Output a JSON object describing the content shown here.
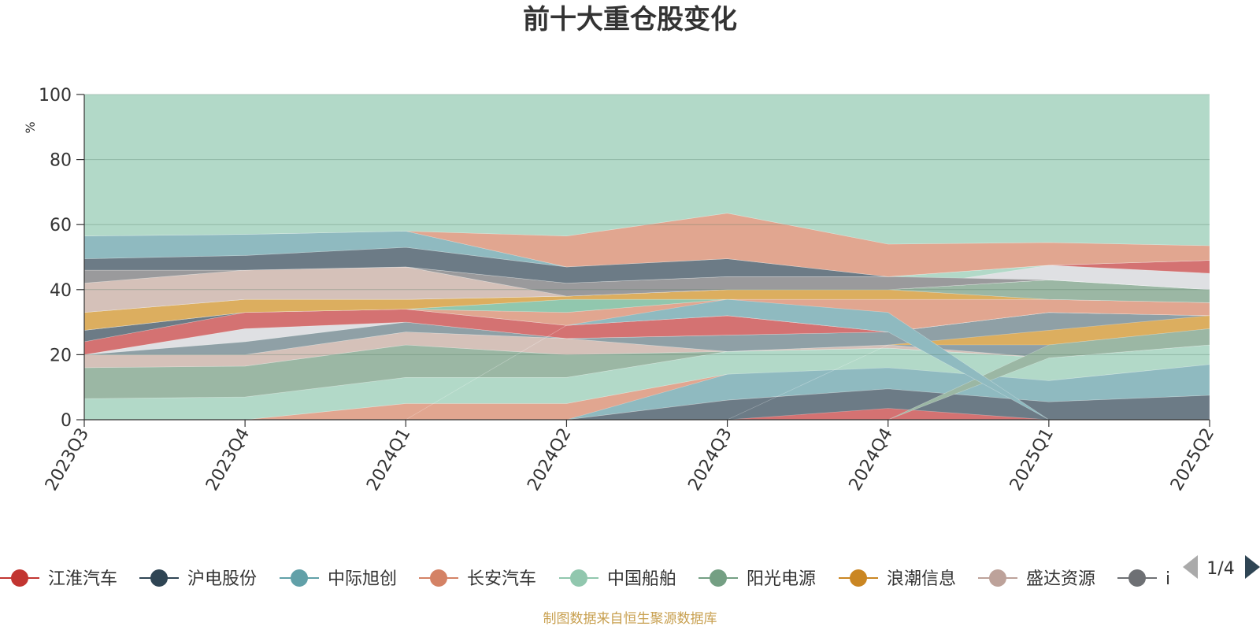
{
  "title": "前十大重仓股变化",
  "source_note": "制图数据来自恒生聚源数据库",
  "legend_page": "1/4",
  "colors": {
    "background_area": "#b2d9c8",
    "source_note": "#c8a050",
    "ylabel": "#e02020",
    "pager_disabled": "#aaaaaa",
    "pager_active": "#2f4554"
  },
  "legend": [
    {
      "name": "江淮汽车",
      "color": "#c23531"
    },
    {
      "name": "沪电股份",
      "color": "#2f4554"
    },
    {
      "name": "中际旭创",
      "color": "#61a0a8"
    },
    {
      "name": "长安汽车",
      "color": "#d48265"
    },
    {
      "name": "中国船舶",
      "color": "#91c7ae"
    },
    {
      "name": "阳光电源",
      "color": "#749f83"
    },
    {
      "name": "浪潮信息",
      "color": "#ca8622"
    },
    {
      "name": "盛达资源",
      "color": "#bda29a"
    },
    {
      "name": "i",
      "color": "#6e7074"
    }
  ],
  "chart_data": {
    "type": "area",
    "title": "前十大重仓股变化",
    "xlabel": "",
    "ylabel": "%",
    "ylim": [
      0,
      100
    ],
    "yticks": [
      0,
      20,
      40,
      60,
      80,
      100
    ],
    "categories": [
      "2023Q3",
      "2023Q4",
      "2024Q1",
      "2024Q2",
      "2024Q3",
      "2024Q4",
      "2025Q1",
      "2025Q2"
    ],
    "grid": true,
    "legend_position": "bottom",
    "bands": [
      {
        "color": "#e1a690",
        "opacity": 1,
        "lower": [
          0,
          0,
          0,
          0,
          0,
          0,
          0,
          0
        ],
        "upper": [
          0,
          0,
          5,
          5,
          14,
          0,
          0,
          0
        ]
      },
      {
        "color": "#b2d9c8",
        "opacity": 1,
        "lower": [
          0,
          0,
          5,
          5,
          14,
          14,
          12,
          17
        ],
        "upper": [
          6.5,
          7,
          13,
          13,
          21,
          22,
          19,
          23
        ]
      },
      {
        "color": "#9bb7a4",
        "opacity": 1,
        "lower": [
          6.5,
          7,
          13,
          13,
          21,
          22,
          19,
          23
        ],
        "upper": [
          16,
          16.5,
          23,
          20,
          21,
          22,
          19,
          28
        ]
      },
      {
        "color": "#d5c1b9",
        "opacity": 1,
        "lower": [
          16,
          16.5,
          23,
          20,
          21,
          22,
          19,
          28
        ],
        "upper": [
          20,
          20,
          27,
          25,
          21,
          23,
          19,
          28
        ]
      },
      {
        "color": "#8fa0a6",
        "opacity": 1,
        "lower": [
          20,
          20,
          27,
          25,
          21,
          23,
          19,
          28
        ],
        "upper": [
          20,
          24,
          30,
          25,
          26,
          27,
          33,
          32
        ]
      },
      {
        "color": "#dfe0e3",
        "opacity": 1,
        "lower": [
          20,
          24,
          30,
          25,
          26,
          27,
          33,
          32
        ],
        "upper": [
          20,
          28,
          30,
          25,
          26,
          27,
          33,
          32
        ]
      },
      {
        "color": "#d47272",
        "opacity": 1,
        "lower": [
          20,
          28,
          30,
          25,
          26,
          27,
          33,
          32
        ],
        "upper": [
          24,
          33,
          34,
          29,
          32,
          27,
          33,
          32
        ]
      },
      {
        "color": "#6c7b86",
        "opacity": 1,
        "lower": [
          24,
          33,
          34,
          29,
          32,
          27,
          33,
          32
        ],
        "upper": [
          27.5,
          33,
          34,
          29,
          32,
          27,
          33,
          32
        ]
      },
      {
        "color": "#e1a690",
        "opacity": 1,
        "lower": [
          27.5,
          33,
          34,
          29,
          32,
          27,
          33,
          32
        ],
        "upper": [
          27.5,
          33,
          34,
          33,
          37,
          37,
          37,
          36
        ]
      },
      {
        "color": "#91c7ae",
        "opacity": 1,
        "lower": [
          27.5,
          33,
          34,
          33,
          37,
          37,
          37,
          36
        ],
        "upper": [
          27.5,
          33,
          34,
          37,
          37,
          37,
          37,
          36
        ]
      },
      {
        "color": "#dcae5f",
        "opacity": 1,
        "lower": [
          27.5,
          33,
          34,
          37,
          37,
          37,
          37,
          36
        ],
        "upper": [
          33,
          37,
          37,
          38,
          40,
          40,
          37,
          36
        ]
      },
      {
        "color": "#9bb7a4",
        "opacity": 1,
        "lower": [
          33,
          37,
          37,
          38,
          40,
          40,
          37,
          36
        ],
        "upper": [
          33,
          37,
          37,
          38,
          40,
          40,
          43,
          40
        ]
      },
      {
        "color": "#dfe0e3",
        "opacity": 1,
        "lower": [
          33,
          37,
          37,
          38,
          40,
          40,
          43,
          40
        ],
        "upper": [
          33,
          37,
          37,
          38,
          40,
          40,
          47.5,
          45
        ]
      },
      {
        "color": "#d5c1b9",
        "opacity": 1,
        "lower": [
          33,
          37,
          37,
          38,
          40,
          40,
          43,
          40
        ],
        "upper": [
          42,
          46,
          47,
          38,
          40,
          40,
          43,
          40
        ]
      },
      {
        "color": "#9a9a9c",
        "opacity": 1,
        "lower": [
          42,
          46,
          47,
          38,
          40,
          40,
          43,
          40
        ],
        "upper": [
          46,
          46,
          47,
          42,
          44,
          44,
          43,
          40
        ]
      },
      {
        "color": "#d47272",
        "opacity": 1,
        "lower": [
          46,
          46,
          47,
          42,
          44,
          44,
          47.5,
          45
        ],
        "upper": [
          46,
          46,
          47,
          42,
          44,
          44,
          47.5,
          49
        ]
      },
      {
        "color": "#6c7b86",
        "opacity": 1,
        "lower": [
          46,
          46,
          47,
          42,
          44,
          44,
          47.5,
          49
        ],
        "upper": [
          49.5,
          50.5,
          53,
          47,
          49.5,
          44,
          47.5,
          49
        ]
      },
      {
        "color": "#8fbac0",
        "opacity": 1,
        "lower": [
          49.5,
          50.5,
          53,
          47,
          49.5,
          44,
          47.5,
          49
        ],
        "upper": [
          56.5,
          57,
          58,
          47,
          49.5,
          44,
          47.5,
          49
        ]
      },
      {
        "color": "#e1a690",
        "opacity": 1,
        "lower": [
          56.5,
          57,
          58,
          47,
          49.5,
          44,
          47.5,
          49
        ],
        "upper": [
          56.5,
          57,
          58,
          56.5,
          63.5,
          54,
          54.5,
          53.5
        ]
      },
      {
        "color": "#b2d9c8",
        "opacity": 1,
        "lower": [
          56.5,
          57,
          58,
          56.5,
          63.5,
          54,
          54.5,
          53.5
        ],
        "upper": [
          100,
          100,
          100,
          100,
          100,
          100,
          100,
          100
        ]
      },
      {
        "color": "#b2d9c8",
        "opacity": 1,
        "lower": [
          0,
          0,
          0,
          0,
          0,
          0,
          0,
          0
        ],
        "upper": [
          0,
          0,
          0,
          0,
          0,
          0,
          0,
          0
        ]
      },
      {
        "color": "#9bb7a4",
        "opacity": 1,
        "lower": [
          0,
          0,
          0,
          0,
          0,
          0,
          0,
          0
        ],
        "upper": [
          0,
          0,
          0,
          0,
          0,
          0,
          0,
          0
        ]
      }
    ],
    "overlays": [
      {
        "color": "#8fbac0",
        "opacity": 1,
        "lower": [
          0,
          0,
          0,
          0,
          6,
          9.5,
          5.5,
          7.5
        ],
        "upper": [
          0,
          0,
          0,
          0,
          14,
          16,
          12,
          17
        ]
      },
      {
        "color": "#6c7b86",
        "opacity": 1,
        "lower": [
          0,
          0,
          0,
          0,
          0,
          0,
          0,
          0
        ],
        "upper": [
          0,
          0,
          0,
          0,
          6,
          9.5,
          5.5,
          7.5
        ]
      },
      {
        "color": "#d47272",
        "opacity": 1,
        "lower": [
          0,
          0,
          0,
          0,
          0,
          0,
          0,
          0
        ],
        "upper": [
          0,
          0,
          0,
          0,
          0,
          3.5,
          0,
          0
        ]
      },
      {
        "color": "#dcae5f",
        "opacity": 1,
        "lower": [
          0,
          0,
          0,
          0,
          0,
          23,
          23,
          28
        ],
        "upper": [
          0,
          0,
          0,
          0,
          0,
          23,
          27.5,
          32
        ]
      },
      {
        "color": "#9bb7a4",
        "opacity": 1,
        "lower": [
          0,
          0,
          0,
          0,
          0,
          0,
          19,
          23
        ],
        "upper": [
          0,
          0,
          0,
          0,
          0,
          0,
          23,
          28
        ]
      },
      {
        "color": "#8fbac0",
        "opacity": 1,
        "lower": [
          0,
          0,
          0,
          29,
          32,
          27,
          0,
          0
        ],
        "upper": [
          0,
          0,
          0,
          29,
          37,
          33,
          0,
          0
        ]
      },
      {
        "color": "#e1a690",
        "opacity": 1,
        "lower": [
          0,
          0,
          0,
          0,
          0,
          0,
          0,
          0
        ],
        "upper": [
          0,
          0,
          0,
          0,
          0,
          0,
          0,
          0
        ]
      }
    ]
  }
}
